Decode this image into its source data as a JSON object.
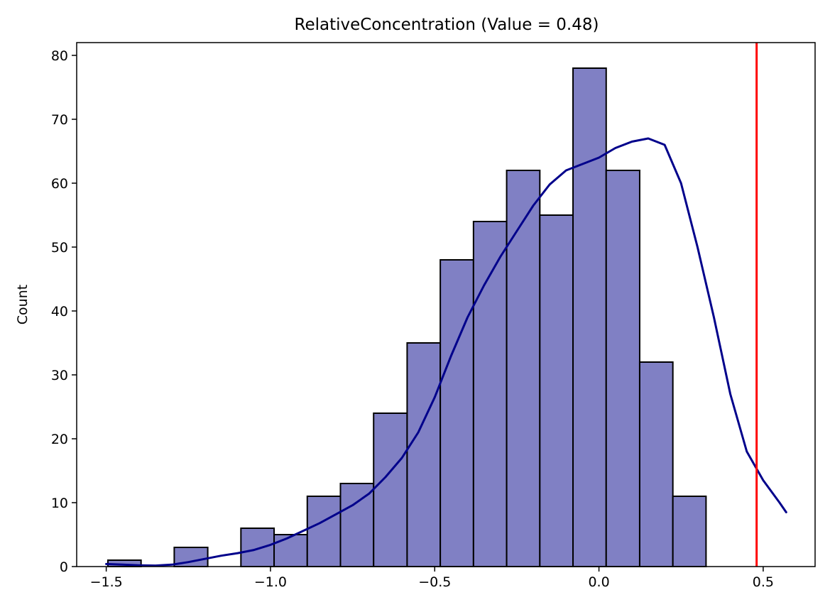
{
  "chart_data": {
    "type": "histogram",
    "title": "RelativeConcentration (Value = 0.48)",
    "xlabel": "",
    "ylabel": "Count",
    "xlim": [
      -1.59,
      0.658
    ],
    "ylim": [
      0,
      82
    ],
    "xticks": [
      -1.5,
      -1.0,
      -0.5,
      0.0,
      0.5
    ],
    "xtick_labels": [
      "−1.5",
      "−1.0",
      "−0.5",
      "0.0",
      "0.5"
    ],
    "yticks": [
      0,
      10,
      20,
      30,
      40,
      50,
      60,
      70,
      80
    ],
    "ytick_labels": [
      "0",
      "10",
      "20",
      "30",
      "40",
      "50",
      "60",
      "70",
      "80"
    ],
    "grid": false,
    "bin_edges": [
      -1.495,
      -1.394,
      -1.293,
      -1.191,
      -1.09,
      -0.989,
      -0.888,
      -0.787,
      -0.686,
      -0.584,
      -0.483,
      -0.382,
      -0.281,
      -0.18,
      -0.079,
      0.022,
      0.124,
      0.225,
      0.326,
      0.427,
      0.528
    ],
    "counts": [
      1,
      0,
      3,
      0,
      6,
      5,
      11,
      13,
      24,
      35,
      48,
      54,
      62,
      55,
      78,
      62,
      32,
      11,
      0,
      0
    ],
    "bar_color": "#8080c4",
    "bar_edge_color": "#000000",
    "kde": {
      "color": "#00008b",
      "x": [
        -1.5,
        -1.45,
        -1.4,
        -1.35,
        -1.3,
        -1.25,
        -1.2,
        -1.15,
        -1.1,
        -1.05,
        -1.0,
        -0.95,
        -0.9,
        -0.85,
        -0.8,
        -0.75,
        -0.7,
        -0.65,
        -0.6,
        -0.55,
        -0.5,
        -0.45,
        -0.4,
        -0.35,
        -0.3,
        -0.25,
        -0.2,
        -0.15,
        -0.1,
        -0.05,
        0.0,
        0.05,
        0.1,
        0.15,
        0.2,
        0.25,
        0.3,
        0.35,
        0.4,
        0.45,
        0.5,
        0.55,
        0.57
      ],
      "y": [
        0.4,
        0.3,
        0.2,
        0.15,
        0.3,
        0.7,
        1.2,
        1.7,
        2.1,
        2.6,
        3.4,
        4.4,
        5.6,
        6.8,
        8.2,
        9.6,
        11.4,
        14.0,
        17.0,
        21.0,
        26.5,
        33.0,
        39.0,
        44.0,
        48.5,
        52.5,
        56.5,
        59.8,
        62.0,
        63.0,
        64.0,
        65.5,
        66.5,
        67.0,
        66.0,
        60.0,
        50.0,
        39.0,
        27.0,
        18.0,
        13.5,
        10.0,
        8.5
      ]
    },
    "reference_line": {
      "value": 0.48,
      "color": "#ff0000"
    }
  }
}
